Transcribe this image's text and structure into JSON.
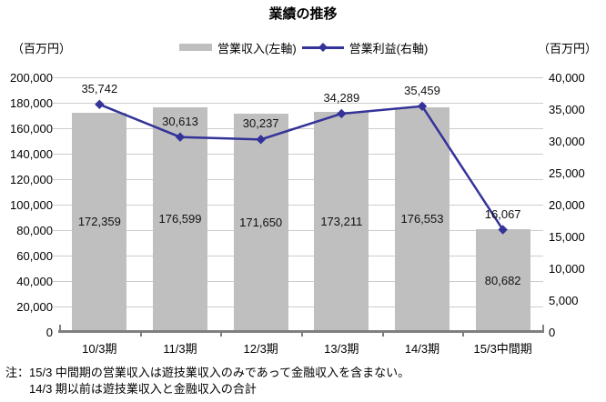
{
  "chart_data": {
    "type": "bar",
    "title": "業績の推移",
    "categories": [
      "10/3期",
      "11/3期",
      "12/3期",
      "13/3期",
      "14/3期",
      "15/3中間期"
    ],
    "series": [
      {
        "name": "営業収入(左軸)",
        "type": "bar",
        "axis": "left",
        "color": "#bfbfbf",
        "values": [
          172359,
          176599,
          171650,
          173211,
          176553,
          80682
        ]
      },
      {
        "name": "営業利益(右軸)",
        "type": "line",
        "axis": "right",
        "color": "#333399",
        "marker": "diamond",
        "values": [
          35742,
          30613,
          30237,
          34289,
          35459,
          16067
        ]
      }
    ],
    "left_axis": {
      "unit": "（百万円）",
      "min": 0,
      "max": 200000,
      "step": 20000
    },
    "right_axis": {
      "unit": "（百万円）",
      "min": 0,
      "max": 40000,
      "step": 5000
    },
    "grid": "horizontal gridlines at left-axis steps",
    "legend_position": "top-center",
    "data_labels": "shown for all points and bars"
  },
  "note": {
    "prefix": "注：",
    "line1": "15/3 中間期の営業収入は遊技業収入のみであって金融収入を含まない。",
    "line2": "14/3 期以前は遊技業収入と金融収入の合計"
  },
  "colors": {
    "bar": "#bfbfbf",
    "line": "#333399",
    "gridline": "#cdcdcd",
    "axis_line": "#7f7f7f"
  }
}
